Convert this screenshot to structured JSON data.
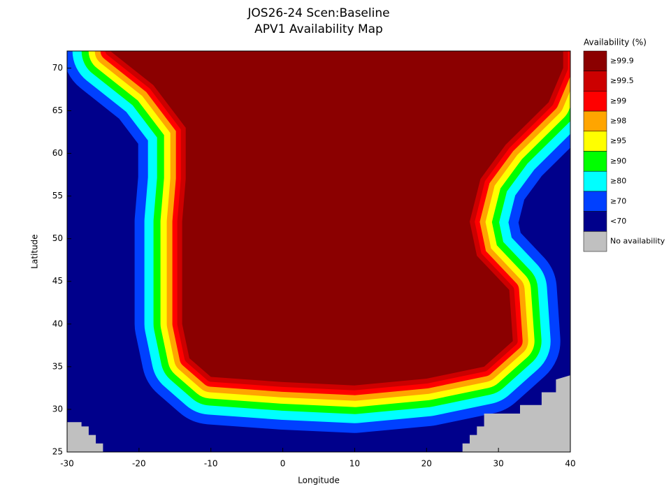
{
  "chart_data": {
    "type": "map",
    "title": "JOS26-24 Scen:Baseline",
    "subtitle": "APV1 Availability Map",
    "x_label": "Longitude",
    "y_label": "Latitude",
    "xlim": [
      -30,
      40
    ],
    "ylim": [
      25,
      72
    ],
    "xticks": [
      -30,
      -20,
      -10,
      0,
      10,
      20,
      30,
      40
    ],
    "yticks": [
      25,
      30,
      35,
      40,
      45,
      50,
      55,
      60,
      65,
      70
    ],
    "legend": {
      "title": "Availability (%)",
      "items": [
        {
          "label": "≥99.9",
          "color": "#8b0000"
        },
        {
          "label": "≥99.5",
          "color": "#cc0000"
        },
        {
          "label": "≥99",
          "color": "#ff0000"
        },
        {
          "label": "≥98",
          "color": "#ffa500"
        },
        {
          "label": "≥95",
          "color": "#ffff00"
        },
        {
          "label": "≥90",
          "color": "#00ff00"
        },
        {
          "label": "≥80",
          "color": "#00ffff"
        },
        {
          "label": "≥70",
          "color": "#0040ff"
        },
        {
          "label": "<70",
          "color": "#00008b"
        },
        {
          "label": "No availability",
          "color": "#c0c0c0"
        }
      ]
    }
  }
}
